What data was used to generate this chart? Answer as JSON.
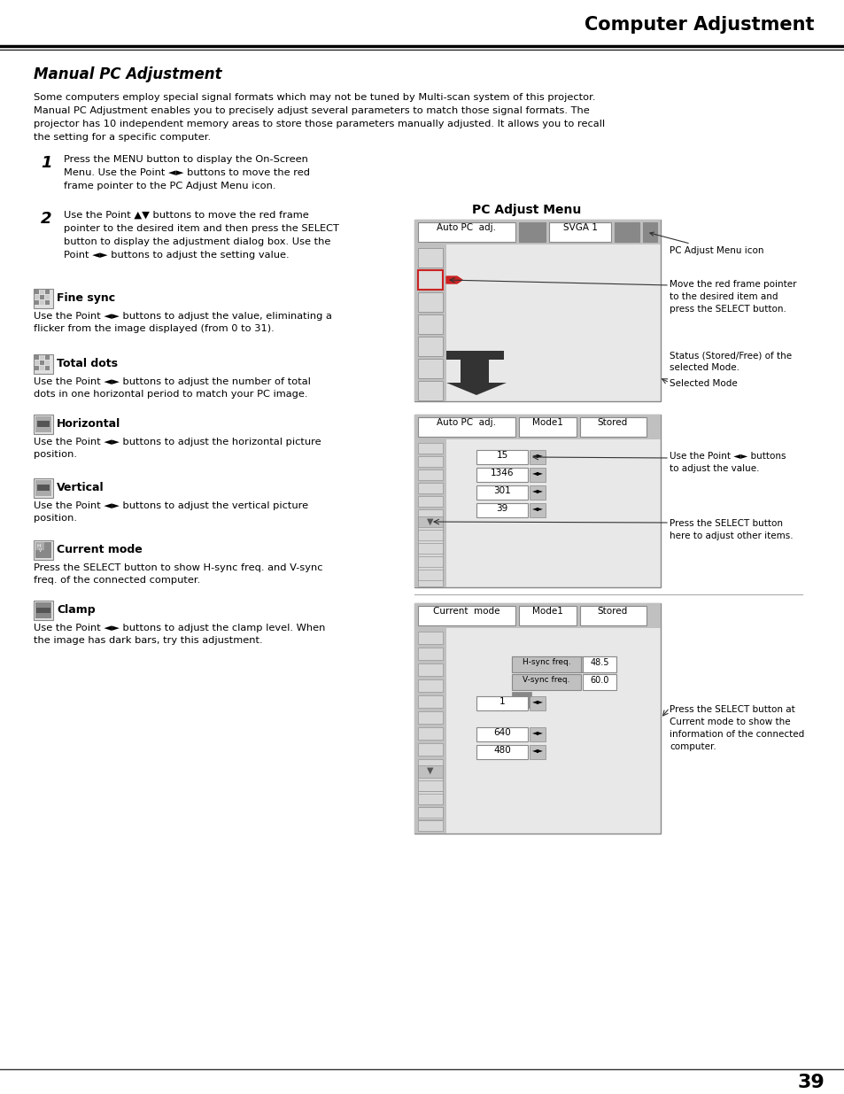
{
  "page_title": "Computer Adjustment",
  "section_title": "Manual PC Adjustment",
  "intro_lines": [
    "Some computers employ special signal formats which may not be tuned by Multi-scan system of this projector.",
    "Manual PC Adjustment enables you to precisely adjust several parameters to match those signal formats. The",
    "projector has 10 independent memory areas to store those parameters manually adjusted. It allows you to recall",
    "the setting for a specific computer."
  ],
  "step1_num": "1",
  "step1_lines": [
    "Press the MENU button to display the On-Screen",
    "Menu. Use the Point ◄► buttons to move the red",
    "frame pointer to the PC Adjust Menu icon."
  ],
  "step2_num": "2",
  "step2_lines": [
    "Use the Point ▲▼ buttons to move the red frame",
    "pointer to the desired item and then press the SELECT",
    "button to display the adjustment dialog box. Use the",
    "Point ◄► buttons to adjust the setting value."
  ],
  "items": [
    {
      "icon": "finesync",
      "title": "Fine sync",
      "lines": [
        "Use the Point ◄► buttons to adjust the value, eliminating a",
        "flicker from the image displayed (from 0 to 31)."
      ]
    },
    {
      "icon": "totaldots",
      "title": "Total dots",
      "lines": [
        "Use the Point ◄► buttons to adjust the number of total",
        "dots in one horizontal period to match your PC image."
      ]
    },
    {
      "icon": "horizontal",
      "title": "Horizontal",
      "lines": [
        "Use the Point ◄► buttons to adjust the horizontal picture",
        "position."
      ]
    },
    {
      "icon": "vertical",
      "title": "Vertical",
      "lines": [
        "Use the Point ◄► buttons to adjust the vertical picture",
        "position."
      ]
    },
    {
      "icon": "currentmode",
      "title": "Current mode",
      "lines": [
        "Press the SELECT button to show H-sync freq. and V-sync",
        "freq. of the connected computer."
      ]
    },
    {
      "icon": "clamp",
      "title": "Clamp",
      "lines": [
        "Use the Point ◄► buttons to adjust the clamp level. When",
        "the image has dark bars, try this adjustment."
      ]
    }
  ],
  "pc_adjust_label": "PC Adjust Menu",
  "m1_bar": [
    "Auto PC  adj.",
    "SVGA 1"
  ],
  "m1_note1": "PC Adjust Menu icon",
  "m1_note2": [
    "Move the red frame pointer",
    "to the desired item and",
    "press the SELECT button."
  ],
  "m1_note3": [
    "Status (Stored/Free) of the",
    "selected Mode."
  ],
  "m1_note4": "Selected Mode",
  "m2_bar": [
    "Auto PC  adj.",
    "Mode1",
    "Stored"
  ],
  "m2_values": [
    "15",
    "1346",
    "301",
    "39"
  ],
  "m2_note1": [
    "Use the Point ◄► buttons",
    "to adjust the value."
  ],
  "m2_note2": [
    "Press the SELECT button",
    "here to adjust other items."
  ],
  "m3_bar": [
    "Current  mode",
    "Mode1",
    "Stored"
  ],
  "m3_hsync": [
    "H-sync freq.",
    "48.5"
  ],
  "m3_vsync": [
    "V-sync freq.",
    "60.0"
  ],
  "m3_values": [
    "1",
    "640",
    "480"
  ],
  "m3_note": [
    "Press the SELECT button at",
    "Current mode to show the",
    "information of the connected",
    "computer."
  ],
  "page_number": "39"
}
